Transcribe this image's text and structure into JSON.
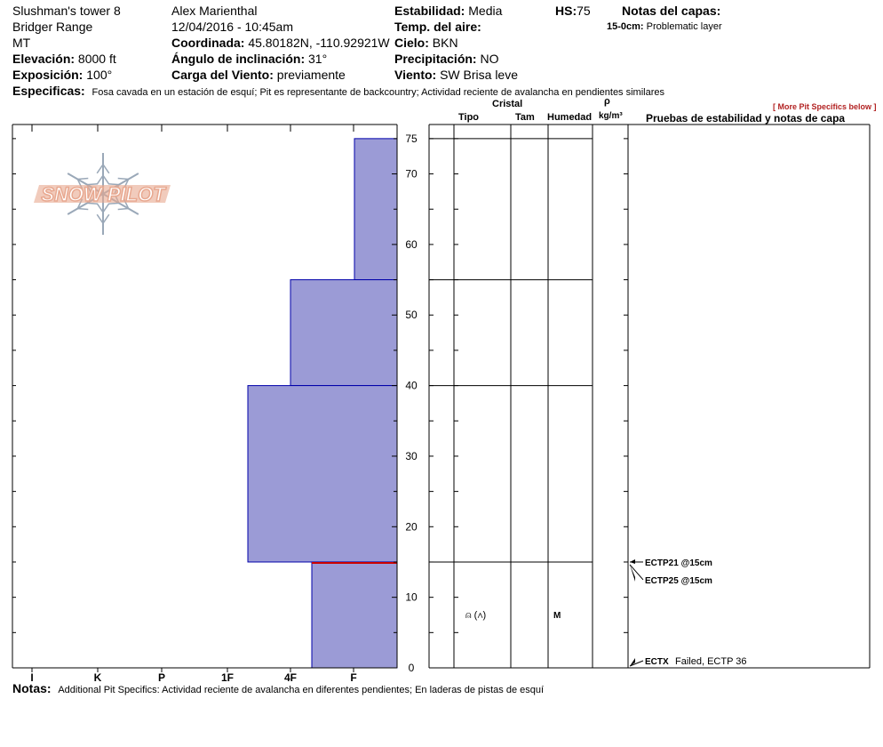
{
  "header": {
    "pit_name": "Slushman's tower 8",
    "range": "Bridger Range",
    "state": "MT",
    "elevation_label": "Elevación:",
    "elevation_value": "8000 ft",
    "aspect_label": "Exposición:",
    "aspect_value": "100°",
    "observer": "Alex Marienthal",
    "datetime": "12/04/2016 - 10:45am",
    "coord_label": "Coordinada:",
    "coord_value": "45.80182N, -110.92921W",
    "slope_label": "Ángulo de inclinación:",
    "slope_value": "31°",
    "wind_load_label": "Carga del Viento:",
    "wind_load_value": "previamente",
    "stability_label": "Estabilidad:",
    "stability_value": "Media",
    "air_temp_label": "Temp. del aire:",
    "sky_label": "Cielo:",
    "sky_value": "BKN",
    "precip_label": "Precipitación:",
    "precip_value": "NO",
    "wind_label": "Viento:",
    "wind_value": "SW  Brisa leve",
    "hs_label": "HS:",
    "hs_value": "75",
    "layer_notes_label": "Notas del capas:",
    "layer_note_depth": "15-0cm:",
    "layer_note_text": "Problematic layer",
    "specifics_label": "Especificas:",
    "specifics_value": "Fosa cavada en un estación de esquí; Pit es representante de backcountry; Actividad reciente de avalancha en pendientes similares",
    "more_specifics": "[ More Pit Specifics below ]"
  },
  "columns": {
    "crystal": "Cristal",
    "tipo": "Tipo",
    "tam": "Tam",
    "humedad": "Humedad",
    "rho": "ρ",
    "density_unit": "kg/m³",
    "tests_header": "Pruebas de estabilidad y notas de capa"
  },
  "footer": {
    "notes_label": "Notas:",
    "notes_value": "Additional Pit Specifics: Actividad reciente de avalancha en diferentes pendientes; En laderas de pistas de esquí"
  },
  "logo": {
    "text": "SNOW PILOT"
  },
  "colors": {
    "hardness_fill": "#9b9bd6",
    "hardness_stroke": "#0000aa",
    "weak_layer": "#cc0000",
    "logo": "#e8a890",
    "flake": "#9aa8b8"
  },
  "chart_data": {
    "type": "bar",
    "orientation": "horizontal",
    "ylabel": "",
    "ylim": [
      0,
      77
    ],
    "y_ticks": [
      0,
      10,
      20,
      30,
      40,
      50,
      60,
      70,
      75
    ],
    "hardness_scale": [
      "I",
      "K",
      "P",
      "1F",
      "4F",
      "F"
    ],
    "layers": [
      {
        "top": 75,
        "bottom": 55,
        "hardness": "F+"
      },
      {
        "top": 55,
        "bottom": 40,
        "hardness": "4F"
      },
      {
        "top": 40,
        "bottom": 15,
        "hardness": "1F-"
      },
      {
        "top": 15,
        "bottom": 0,
        "hardness": "4F-",
        "crystal_type": "⍝ (∧)",
        "moisture": "M"
      }
    ],
    "weak_layer_depth": 15,
    "layer_boundaries": [
      75,
      55,
      40,
      15
    ],
    "tests": [
      {
        "label": "ECTP21 @15cm",
        "depth": 15
      },
      {
        "label": "ECTP25 @15cm",
        "depth": 15
      },
      {
        "label": "ECTX",
        "note": "Failed, ECTP 36",
        "depth": 0
      }
    ]
  }
}
